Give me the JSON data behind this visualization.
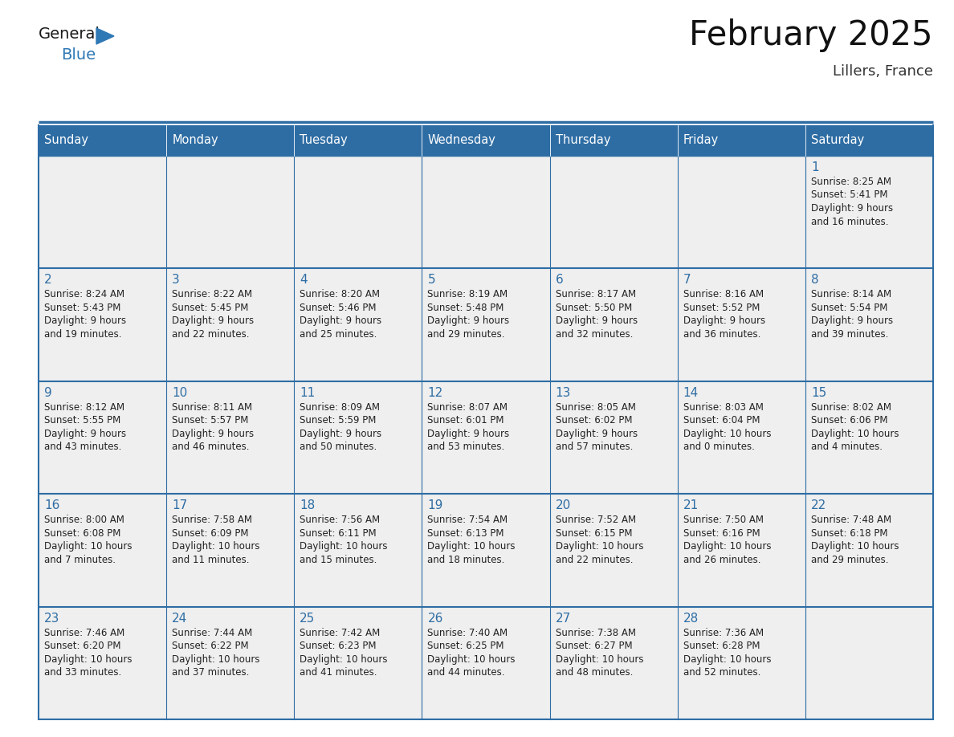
{
  "title": "February 2025",
  "subtitle": "Lillers, France",
  "days_of_week": [
    "Sunday",
    "Monday",
    "Tuesday",
    "Wednesday",
    "Thursday",
    "Friday",
    "Saturday"
  ],
  "header_bg": "#2E6DA4",
  "header_text": "#FFFFFF",
  "cell_bg": "#EFEFEF",
  "border_color": "#2E6DA4",
  "day_number_color": "#2E6DA4",
  "text_color": "#222222",
  "logo_general_color": "#1a1a1a",
  "logo_blue_color": "#2E78B5",
  "calendar_data": [
    [
      null,
      null,
      null,
      null,
      null,
      null,
      {
        "day": 1,
        "sunrise": "8:25 AM",
        "sunset": "5:41 PM",
        "daylight_hours": 9,
        "daylight_minutes": 16
      }
    ],
    [
      {
        "day": 2,
        "sunrise": "8:24 AM",
        "sunset": "5:43 PM",
        "daylight_hours": 9,
        "daylight_minutes": 19
      },
      {
        "day": 3,
        "sunrise": "8:22 AM",
        "sunset": "5:45 PM",
        "daylight_hours": 9,
        "daylight_minutes": 22
      },
      {
        "day": 4,
        "sunrise": "8:20 AM",
        "sunset": "5:46 PM",
        "daylight_hours": 9,
        "daylight_minutes": 25
      },
      {
        "day": 5,
        "sunrise": "8:19 AM",
        "sunset": "5:48 PM",
        "daylight_hours": 9,
        "daylight_minutes": 29
      },
      {
        "day": 6,
        "sunrise": "8:17 AM",
        "sunset": "5:50 PM",
        "daylight_hours": 9,
        "daylight_minutes": 32
      },
      {
        "day": 7,
        "sunrise": "8:16 AM",
        "sunset": "5:52 PM",
        "daylight_hours": 9,
        "daylight_minutes": 36
      },
      {
        "day": 8,
        "sunrise": "8:14 AM",
        "sunset": "5:54 PM",
        "daylight_hours": 9,
        "daylight_minutes": 39
      }
    ],
    [
      {
        "day": 9,
        "sunrise": "8:12 AM",
        "sunset": "5:55 PM",
        "daylight_hours": 9,
        "daylight_minutes": 43
      },
      {
        "day": 10,
        "sunrise": "8:11 AM",
        "sunset": "5:57 PM",
        "daylight_hours": 9,
        "daylight_minutes": 46
      },
      {
        "day": 11,
        "sunrise": "8:09 AM",
        "sunset": "5:59 PM",
        "daylight_hours": 9,
        "daylight_minutes": 50
      },
      {
        "day": 12,
        "sunrise": "8:07 AM",
        "sunset": "6:01 PM",
        "daylight_hours": 9,
        "daylight_minutes": 53
      },
      {
        "day": 13,
        "sunrise": "8:05 AM",
        "sunset": "6:02 PM",
        "daylight_hours": 9,
        "daylight_minutes": 57
      },
      {
        "day": 14,
        "sunrise": "8:03 AM",
        "sunset": "6:04 PM",
        "daylight_hours": 10,
        "daylight_minutes": 0
      },
      {
        "day": 15,
        "sunrise": "8:02 AM",
        "sunset": "6:06 PM",
        "daylight_hours": 10,
        "daylight_minutes": 4
      }
    ],
    [
      {
        "day": 16,
        "sunrise": "8:00 AM",
        "sunset": "6:08 PM",
        "daylight_hours": 10,
        "daylight_minutes": 7
      },
      {
        "day": 17,
        "sunrise": "7:58 AM",
        "sunset": "6:09 PM",
        "daylight_hours": 10,
        "daylight_minutes": 11
      },
      {
        "day": 18,
        "sunrise": "7:56 AM",
        "sunset": "6:11 PM",
        "daylight_hours": 10,
        "daylight_minutes": 15
      },
      {
        "day": 19,
        "sunrise": "7:54 AM",
        "sunset": "6:13 PM",
        "daylight_hours": 10,
        "daylight_minutes": 18
      },
      {
        "day": 20,
        "sunrise": "7:52 AM",
        "sunset": "6:15 PM",
        "daylight_hours": 10,
        "daylight_minutes": 22
      },
      {
        "day": 21,
        "sunrise": "7:50 AM",
        "sunset": "6:16 PM",
        "daylight_hours": 10,
        "daylight_minutes": 26
      },
      {
        "day": 22,
        "sunrise": "7:48 AM",
        "sunset": "6:18 PM",
        "daylight_hours": 10,
        "daylight_minutes": 29
      }
    ],
    [
      {
        "day": 23,
        "sunrise": "7:46 AM",
        "sunset": "6:20 PM",
        "daylight_hours": 10,
        "daylight_minutes": 33
      },
      {
        "day": 24,
        "sunrise": "7:44 AM",
        "sunset": "6:22 PM",
        "daylight_hours": 10,
        "daylight_minutes": 37
      },
      {
        "day": 25,
        "sunrise": "7:42 AM",
        "sunset": "6:23 PM",
        "daylight_hours": 10,
        "daylight_minutes": 41
      },
      {
        "day": 26,
        "sunrise": "7:40 AM",
        "sunset": "6:25 PM",
        "daylight_hours": 10,
        "daylight_minutes": 44
      },
      {
        "day": 27,
        "sunrise": "7:38 AM",
        "sunset": "6:27 PM",
        "daylight_hours": 10,
        "daylight_minutes": 48
      },
      {
        "day": 28,
        "sunrise": "7:36 AM",
        "sunset": "6:28 PM",
        "daylight_hours": 10,
        "daylight_minutes": 52
      },
      null
    ]
  ],
  "fig_width": 11.88,
  "fig_height": 9.18,
  "dpi": 100
}
